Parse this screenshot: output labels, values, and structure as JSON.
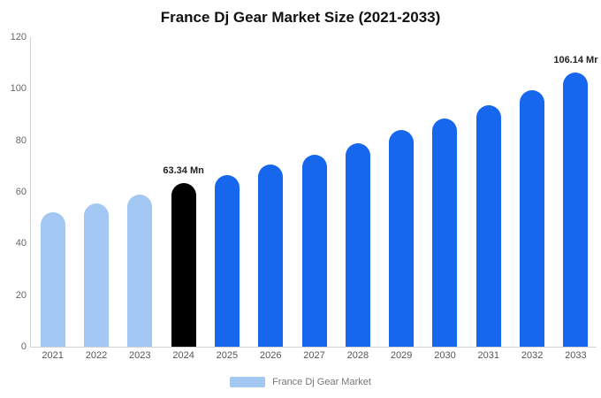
{
  "title": "France Dj Gear Market Size (2021-2033)",
  "legend": {
    "label": "France Dj Gear Market",
    "swatch_color": "#a4c8f4"
  },
  "colors": {
    "historical_bar": "#a4c8f4",
    "base_year_bar": "#000000",
    "forecast_bar": "#1766ee",
    "axis_line": "#d3d3d3",
    "tick_text": "#666666"
  },
  "chart_data": {
    "type": "bar",
    "title": "France Dj Gear Market Size (2021-2033)",
    "categories": [
      "2021",
      "2022",
      "2023",
      "2024",
      "2025",
      "2026",
      "2027",
      "2028",
      "2029",
      "2030",
      "2031",
      "2032",
      "2033"
    ],
    "values": [
      52,
      55.5,
      59,
      63.34,
      66.5,
      70.5,
      74.5,
      79,
      84,
      88.5,
      93.5,
      99.5,
      106.14
    ],
    "bar_colors": [
      "#a4c8f4",
      "#a4c8f4",
      "#a4c8f4",
      "#000000",
      "#1766ee",
      "#1766ee",
      "#1766ee",
      "#1766ee",
      "#1766ee",
      "#1766ee",
      "#1766ee",
      "#1766ee",
      "#1766ee"
    ],
    "annotations": [
      {
        "category": "2024",
        "text": "63.34 Mn"
      },
      {
        "category": "2033",
        "text": "106.14 Mr"
      }
    ],
    "xlabel": "",
    "ylabel": "",
    "ylim": [
      0,
      120
    ],
    "yticks": [
      0,
      20,
      40,
      60,
      80,
      100,
      120
    ],
    "grid": false,
    "legend_position": "bottom",
    "legend_entries": [
      "France Dj Gear Market"
    ]
  }
}
